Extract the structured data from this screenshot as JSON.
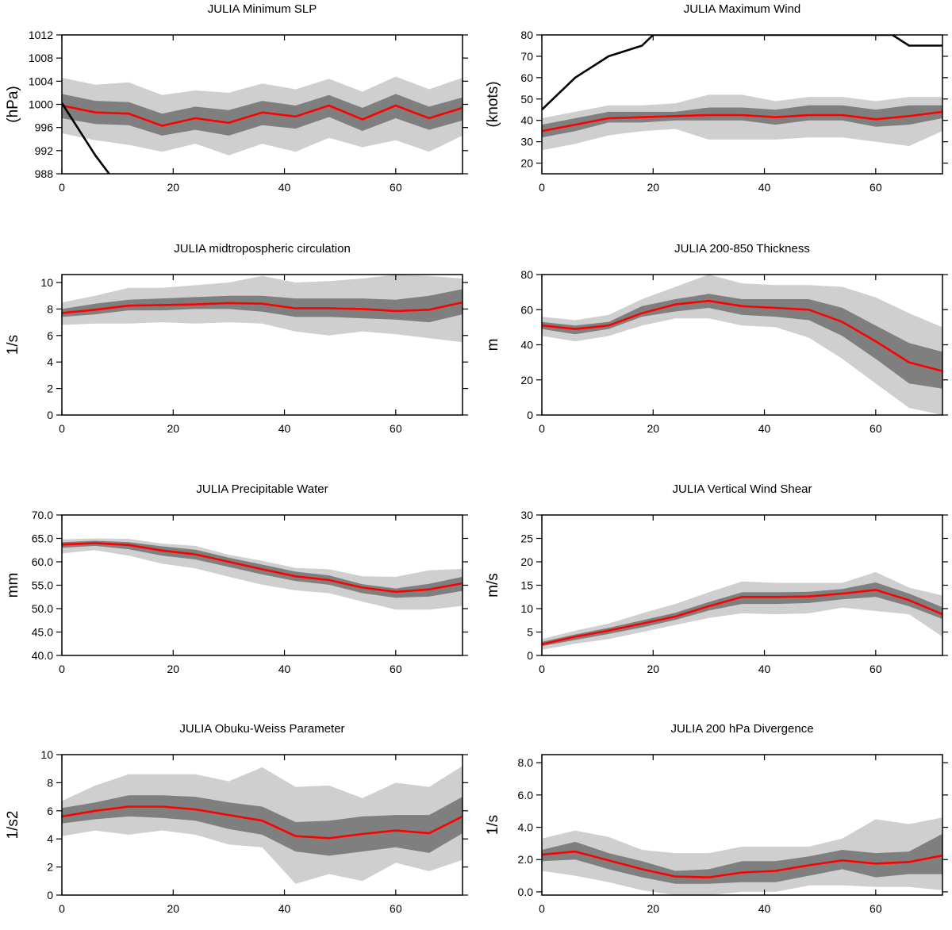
{
  "colors": {
    "outer_band": "#cfcfcf",
    "inner_band": "#7f7f7f",
    "mean_line": "#ff0000",
    "reference_line": "#000000"
  },
  "chart_data": [
    {
      "type": "line",
      "title": "JULIA Minimum SLP",
      "xlabel": "",
      "ylabel": "(hPa)",
      "xlim": [
        0,
        72
      ],
      "ylim": [
        988,
        1012
      ],
      "xticks": [
        0,
        20,
        40,
        60
      ],
      "yticks": [
        988,
        992,
        996,
        1000,
        1004,
        1008,
        1012
      ],
      "ytick_labels": [
        "988",
        "992",
        "996",
        "1000",
        "1004",
        "1008",
        "1012"
      ],
      "x": [
        0,
        6,
        12,
        18,
        24,
        30,
        36,
        42,
        48,
        54,
        60,
        66,
        72
      ],
      "outer_band": {
        "low": [
          995.0,
          993.8,
          993.0,
          991.8,
          993.2,
          991.2,
          993.2,
          991.8,
          994.2,
          992.6,
          993.8,
          991.8,
          994.6
        ],
        "high": [
          1004.6,
          1003.4,
          1003.8,
          1001.6,
          1002.4,
          1002.0,
          1003.6,
          1002.6,
          1004.4,
          1002.2,
          1004.8,
          1002.6,
          1004.6
        ]
      },
      "inner_band": {
        "low": [
          997.6,
          996.6,
          996.4,
          994.6,
          995.6,
          994.6,
          996.4,
          995.8,
          997.8,
          995.4,
          997.6,
          995.6,
          997.2
        ],
        "high": [
          1001.8,
          1000.6,
          1000.4,
          998.4,
          999.6,
          999.0,
          1000.6,
          999.8,
          1001.6,
          999.4,
          1001.8,
          999.6,
          1001.2
        ]
      },
      "mean": [
        999.8,
        998.6,
        998.4,
        996.3,
        997.6,
        996.8,
        998.6,
        997.9,
        999.8,
        997.4,
        999.8,
        997.6,
        999.4
      ],
      "reference": {
        "x": [
          0,
          6,
          8.5
        ],
        "values": [
          1000.2,
          991.2,
          988.0
        ]
      }
    },
    {
      "type": "line",
      "title": "JULIA Maximum Wind",
      "xlabel": "",
      "ylabel": "(knots)",
      "xlim": [
        0,
        72
      ],
      "ylim": [
        15,
        80
      ],
      "xticks": [
        0,
        20,
        40,
        60
      ],
      "yticks": [
        20,
        30,
        40,
        50,
        60,
        70,
        80
      ],
      "ytick_labels": [
        "20",
        "30",
        "40",
        "50",
        "60",
        "70",
        "80"
      ],
      "x": [
        0,
        6,
        12,
        18,
        24,
        30,
        36,
        42,
        48,
        54,
        60,
        66,
        72
      ],
      "outer_band": {
        "low": [
          26,
          29,
          33,
          35,
          36,
          31,
          31,
          31,
          32,
          32,
          30,
          28,
          35
        ],
        "high": [
          41,
          44,
          47,
          47,
          48,
          52,
          52,
          49,
          51,
          51,
          49,
          51,
          51
        ]
      },
      "inner_band": {
        "low": [
          32,
          35,
          39,
          39,
          40,
          40,
          40,
          38,
          40,
          40,
          37,
          38,
          41
        ],
        "high": [
          38,
          41,
          44,
          44,
          44,
          46,
          46,
          45,
          47,
          47,
          45,
          47,
          47
        ]
      },
      "mean": [
        35,
        38,
        41,
        41.5,
        42,
        42.5,
        42.5,
        41.5,
        42.5,
        42.5,
        40.5,
        42,
        44
      ],
      "reference": {
        "x": [
          0,
          6,
          12,
          18,
          20,
          63,
          66,
          72
        ],
        "values": [
          45,
          60,
          70,
          75,
          80,
          80,
          75,
          75
        ]
      }
    },
    {
      "type": "line",
      "title": "JULIA midtropospheric circulation",
      "xlabel": "",
      "ylabel": "1/s",
      "xlim": [
        0,
        72
      ],
      "ylim": [
        0,
        10.6
      ],
      "xticks": [
        0,
        20,
        40,
        60
      ],
      "yticks": [
        0,
        2,
        4,
        6,
        8,
        10
      ],
      "ytick_labels": [
        "0",
        "2",
        "4",
        "6",
        "8",
        "10"
      ],
      "x": [
        0,
        6,
        12,
        18,
        24,
        30,
        36,
        42,
        48,
        54,
        60,
        66,
        72
      ],
      "outer_band": {
        "low": [
          6.8,
          6.9,
          6.9,
          7.0,
          6.9,
          7.0,
          6.9,
          6.3,
          6.0,
          6.3,
          6.1,
          5.8,
          5.5
        ],
        "high": [
          8.5,
          9.0,
          9.6,
          9.6,
          9.8,
          10.0,
          10.5,
          10.0,
          10.1,
          10.3,
          10.6,
          10.5,
          10.3
        ]
      },
      "inner_band": {
        "low": [
          7.4,
          7.6,
          7.9,
          7.9,
          8.0,
          8.0,
          7.8,
          7.4,
          7.4,
          7.3,
          7.2,
          7.0,
          7.6
        ],
        "high": [
          8.0,
          8.4,
          8.7,
          8.8,
          8.9,
          9.0,
          9.0,
          8.8,
          8.8,
          8.8,
          8.7,
          9.0,
          9.5
        ]
      },
      "mean": [
        7.7,
        7.95,
        8.25,
        8.3,
        8.35,
        8.45,
        8.4,
        8.05,
        8.05,
        8.0,
        7.85,
        7.95,
        8.5
      ],
      "reference": null
    },
    {
      "type": "line",
      "title": "JULIA 200-850 Thickness",
      "xlabel": "",
      "ylabel": "m",
      "xlim": [
        0,
        72
      ],
      "ylim": [
        0,
        80
      ],
      "xticks": [
        0,
        20,
        40,
        60
      ],
      "yticks": [
        0,
        20,
        40,
        60,
        80
      ],
      "ytick_labels": [
        "0",
        "20",
        "40",
        "60",
        "80"
      ],
      "x": [
        0,
        6,
        12,
        18,
        24,
        30,
        36,
        42,
        48,
        54,
        60,
        66,
        72
      ],
      "outer_band": {
        "low": [
          45,
          42,
          45,
          51,
          55,
          55,
          51,
          50,
          44,
          32,
          18,
          4,
          0
        ],
        "high": [
          56,
          54,
          57,
          66,
          73,
          80,
          75,
          74,
          74,
          73,
          67,
          58,
          50
        ]
      },
      "inner_band": {
        "low": [
          49,
          46,
          49,
          56,
          59,
          61,
          57,
          56,
          54,
          45,
          32,
          18,
          15
        ],
        "high": [
          53,
          51,
          53,
          62,
          66,
          69,
          66,
          66,
          66,
          61,
          51,
          41,
          36
        ]
      },
      "mean": [
        51,
        49,
        51,
        58,
        63,
        65,
        62,
        61,
        60,
        53,
        42,
        30,
        25
      ],
      "reference": null
    },
    {
      "type": "line",
      "title": "JULIA Precipitable Water",
      "xlabel": "",
      "ylabel": "mm",
      "xlim": [
        0,
        72
      ],
      "ylim": [
        40,
        70
      ],
      "xticks": [
        0,
        20,
        40,
        60
      ],
      "yticks": [
        40,
        45,
        50,
        55,
        60,
        65,
        70
      ],
      "ytick_labels": [
        "40.0",
        "45.0",
        "50.0",
        "55.0",
        "60.0",
        "65.0",
        "70.0"
      ],
      "x": [
        0,
        6,
        12,
        18,
        24,
        30,
        36,
        42,
        48,
        54,
        60,
        66,
        72
      ],
      "outer_band": {
        "low": [
          61.8,
          62.5,
          61.3,
          59.6,
          58.6,
          56.8,
          55.1,
          53.9,
          53.3,
          51.5,
          49.8,
          49.8,
          50.6
        ],
        "high": [
          64.8,
          65.0,
          64.9,
          63.9,
          63.4,
          61.5,
          60.2,
          58.7,
          58.4,
          56.9,
          56.8,
          58.2,
          58.5
        ]
      },
      "inner_band": {
        "low": [
          63.0,
          63.4,
          62.7,
          61.3,
          60.5,
          58.9,
          57.3,
          55.9,
          55.1,
          53.3,
          52.3,
          52.6,
          53.8
        ],
        "high": [
          64.2,
          64.5,
          64.2,
          63.3,
          62.6,
          60.9,
          59.4,
          57.9,
          57.1,
          55.2,
          54.3,
          55.3,
          56.8
        ]
      },
      "mean": [
        63.7,
        64.0,
        63.6,
        62.4,
        61.6,
        60.0,
        58.4,
        56.9,
        56.1,
        54.5,
        53.6,
        54.1,
        55.4
      ],
      "reference": null
    },
    {
      "type": "line",
      "title": "JULIA Vertical Wind Shear",
      "xlabel": "",
      "ylabel": "m/s",
      "xlim": [
        0,
        72
      ],
      "ylim": [
        0,
        30
      ],
      "xticks": [
        0,
        20,
        40,
        60
      ],
      "yticks": [
        0,
        5,
        10,
        15,
        20,
        25,
        30
      ],
      "ytick_labels": [
        "0",
        "5",
        "10",
        "15",
        "20",
        "25",
        "30"
      ],
      "x": [
        0,
        6,
        12,
        18,
        24,
        30,
        36,
        42,
        48,
        54,
        60,
        66,
        72
      ],
      "outer_band": {
        "low": [
          1.2,
          2.5,
          3.5,
          5.0,
          6.5,
          8.0,
          9.0,
          8.8,
          9.0,
          10.2,
          9.5,
          8.8,
          4.0
        ],
        "high": [
          3.5,
          5.3,
          6.8,
          9.0,
          11.0,
          13.5,
          15.8,
          15.5,
          15.5,
          15.5,
          17.8,
          14.5,
          12.8
        ]
      },
      "inner_band": {
        "low": [
          2.0,
          3.3,
          4.6,
          6.0,
          7.6,
          9.6,
          11.0,
          11.0,
          11.2,
          12.0,
          12.5,
          10.5,
          7.8
        ],
        "high": [
          2.9,
          4.5,
          5.9,
          7.5,
          9.1,
          11.4,
          13.5,
          13.5,
          13.6,
          14.2,
          15.6,
          13.2,
          10.3
        ]
      },
      "mean": [
        2.4,
        4.0,
        5.3,
        6.8,
        8.3,
        10.5,
        12.5,
        12.5,
        12.6,
        13.2,
        14.0,
        11.8,
        8.8
      ],
      "reference": null
    },
    {
      "type": "line",
      "title": "JULIA Obuku-Weiss Parameter",
      "xlabel": "",
      "ylabel": "1/s2",
      "xlim": [
        0,
        72
      ],
      "ylim": [
        0,
        10
      ],
      "xticks": [
        0,
        20,
        40,
        60
      ],
      "yticks": [
        0,
        2,
        4,
        6,
        8,
        10
      ],
      "ytick_labels": [
        "0",
        "2",
        "4",
        "6",
        "8",
        "10"
      ],
      "x": [
        0,
        6,
        12,
        18,
        24,
        30,
        36,
        42,
        48,
        54,
        60,
        66,
        72
      ],
      "outer_band": {
        "low": [
          4.2,
          4.6,
          4.3,
          4.6,
          4.3,
          3.6,
          3.4,
          0.8,
          1.5,
          1.0,
          2.3,
          1.7,
          2.5
        ],
        "high": [
          6.7,
          7.8,
          8.6,
          8.6,
          8.6,
          8.1,
          9.1,
          7.7,
          7.8,
          6.9,
          8.0,
          7.7,
          9.2
        ]
      },
      "inner_band": {
        "low": [
          5.1,
          5.4,
          5.6,
          5.5,
          5.3,
          4.7,
          4.3,
          3.1,
          2.8,
          3.1,
          3.4,
          3.0,
          4.4
        ],
        "high": [
          6.2,
          6.6,
          7.1,
          7.1,
          7.0,
          6.6,
          6.3,
          5.2,
          5.3,
          5.6,
          5.7,
          5.7,
          7.0
        ]
      },
      "mean": [
        5.6,
        6.0,
        6.3,
        6.3,
        6.1,
        5.7,
        5.3,
        4.2,
        4.05,
        4.35,
        4.6,
        4.4,
        5.6
      ],
      "reference": null
    },
    {
      "type": "line",
      "title": "JULIA 200 hPa Divergence",
      "xlabel": "",
      "ylabel": "1/s",
      "xlim": [
        0,
        72
      ],
      "ylim": [
        -0.2,
        8.5
      ],
      "xticks": [
        0,
        20,
        40,
        60
      ],
      "yticks": [
        0,
        2,
        4,
        6,
        8
      ],
      "ytick_labels": [
        "0.0",
        "2.0",
        "4.0",
        "6.0",
        "8.0"
      ],
      "x": [
        0,
        6,
        12,
        18,
        24,
        30,
        36,
        42,
        48,
        54,
        60,
        66,
        72
      ],
      "outer_band": {
        "low": [
          1.3,
          1.0,
          0.6,
          0.1,
          -0.2,
          -0.2,
          0.0,
          0.0,
          0.4,
          0.4,
          0.3,
          0.3,
          0.1
        ],
        "high": [
          3.3,
          3.8,
          3.4,
          2.6,
          2.4,
          2.4,
          2.8,
          2.8,
          2.8,
          3.3,
          4.5,
          4.2,
          4.6
        ]
      },
      "inner_band": {
        "low": [
          1.9,
          2.0,
          1.4,
          0.9,
          0.5,
          0.5,
          0.6,
          0.6,
          1.0,
          1.4,
          0.9,
          1.1,
          1.1
        ],
        "high": [
          2.6,
          3.1,
          2.4,
          1.9,
          1.3,
          1.4,
          1.9,
          1.9,
          2.2,
          2.6,
          2.4,
          2.5,
          3.6
        ]
      },
      "mean": [
        2.3,
        2.5,
        1.95,
        1.4,
        0.95,
        0.9,
        1.2,
        1.3,
        1.65,
        1.95,
        1.75,
        1.85,
        2.25
      ],
      "reference": null
    }
  ]
}
